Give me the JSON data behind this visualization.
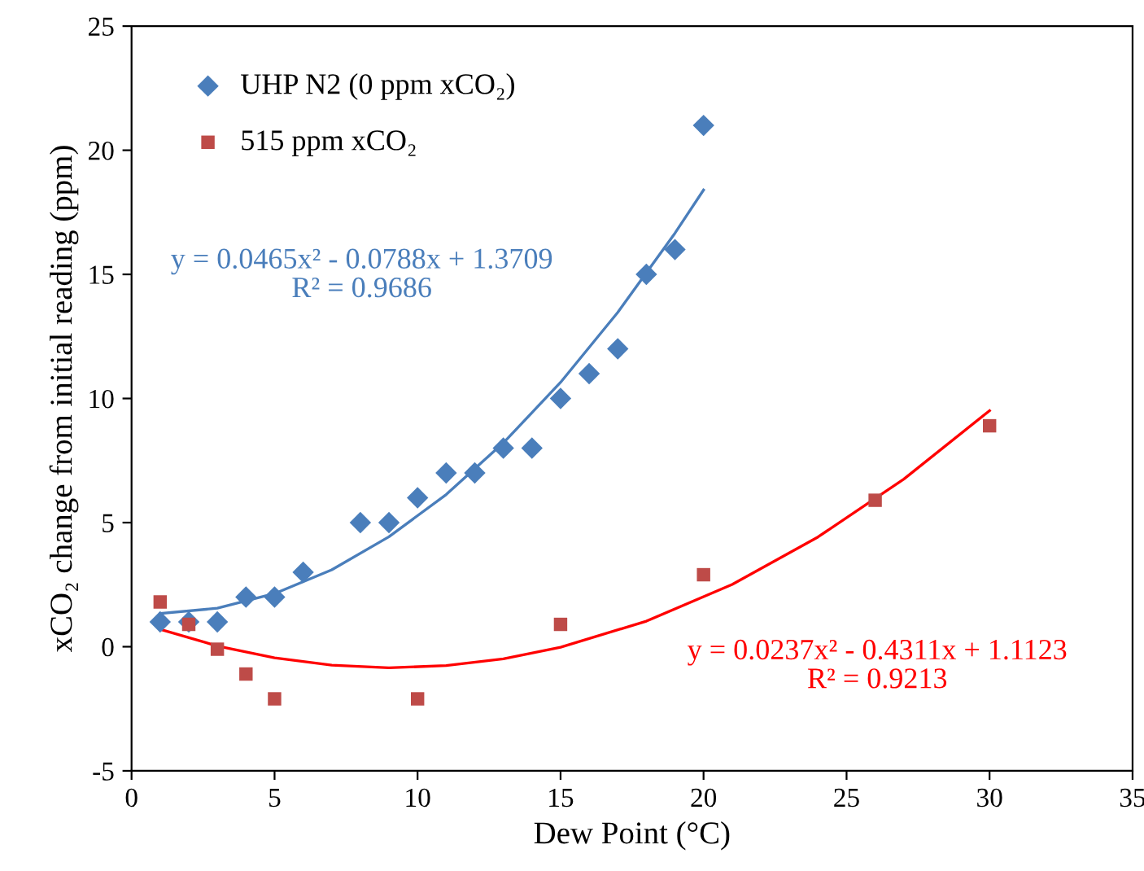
{
  "chart_data": {
    "type": "scatter",
    "xlabel": "Dew Point (°C)",
    "ylabel": "xCO₂ change from initial reading (ppm)",
    "xlim": [
      0,
      35
    ],
    "xticks": [
      0,
      5,
      10,
      15,
      20,
      25,
      30,
      35
    ],
    "ylim": [
      -5,
      25
    ],
    "yticks": [
      -5,
      0,
      5,
      10,
      15,
      20,
      25
    ],
    "grid": false,
    "legend": "top left",
    "series": [
      {
        "name": "UHP N2 (0 ppm xCO₂)",
        "marker": "diamond",
        "color": "#4a7ebb",
        "x": [
          1,
          2,
          3,
          4,
          5,
          6,
          8,
          9,
          10,
          11,
          12,
          13,
          14,
          15,
          16,
          17,
          18,
          19,
          20
        ],
        "values": [
          1,
          1,
          1,
          2,
          2,
          3,
          5,
          5,
          6,
          7,
          7,
          8,
          8,
          10,
          11,
          12,
          15,
          16,
          21
        ]
      },
      {
        "name": "515 ppm xCO₂",
        "marker": "square",
        "color": "#be4b48",
        "x": [
          1,
          2,
          3,
          4,
          5,
          10,
          15,
          20,
          26,
          30
        ],
        "values": [
          1.8,
          0.9,
          -0.1,
          -1.1,
          -2.1,
          -2.1,
          0.9,
          2.9,
          5.9,
          8.9
        ]
      },
      {
        "type": "line",
        "marker": "none",
        "color": "#4a7ebb",
        "x": [
          1,
          3,
          5,
          7,
          9,
          11,
          13,
          15,
          17,
          19,
          20
        ],
        "values": [
          1.34,
          1.55,
          2.14,
          3.1,
          4.43,
          6.13,
          8.21,
          10.65,
          13.47,
          16.66,
          18.4
        ]
      },
      {
        "type": "line",
        "marker": "none",
        "color": "#ff0000",
        "x": [
          1,
          3,
          5,
          7,
          9,
          11,
          13,
          15,
          18,
          21,
          24,
          27,
          30
        ],
        "values": [
          0.7,
          0.03,
          -0.45,
          -0.74,
          -0.85,
          -0.76,
          -0.49,
          -0.02,
          1.03,
          2.51,
          4.42,
          6.75,
          9.51
        ]
      }
    ],
    "annotations": [
      "y = 0.0465x² - 0.0788x + 1.3709\nR² = 0.9686",
      "y = 0.0237x² - 0.4311x + 1.1123\nR² = 0.9213"
    ]
  }
}
